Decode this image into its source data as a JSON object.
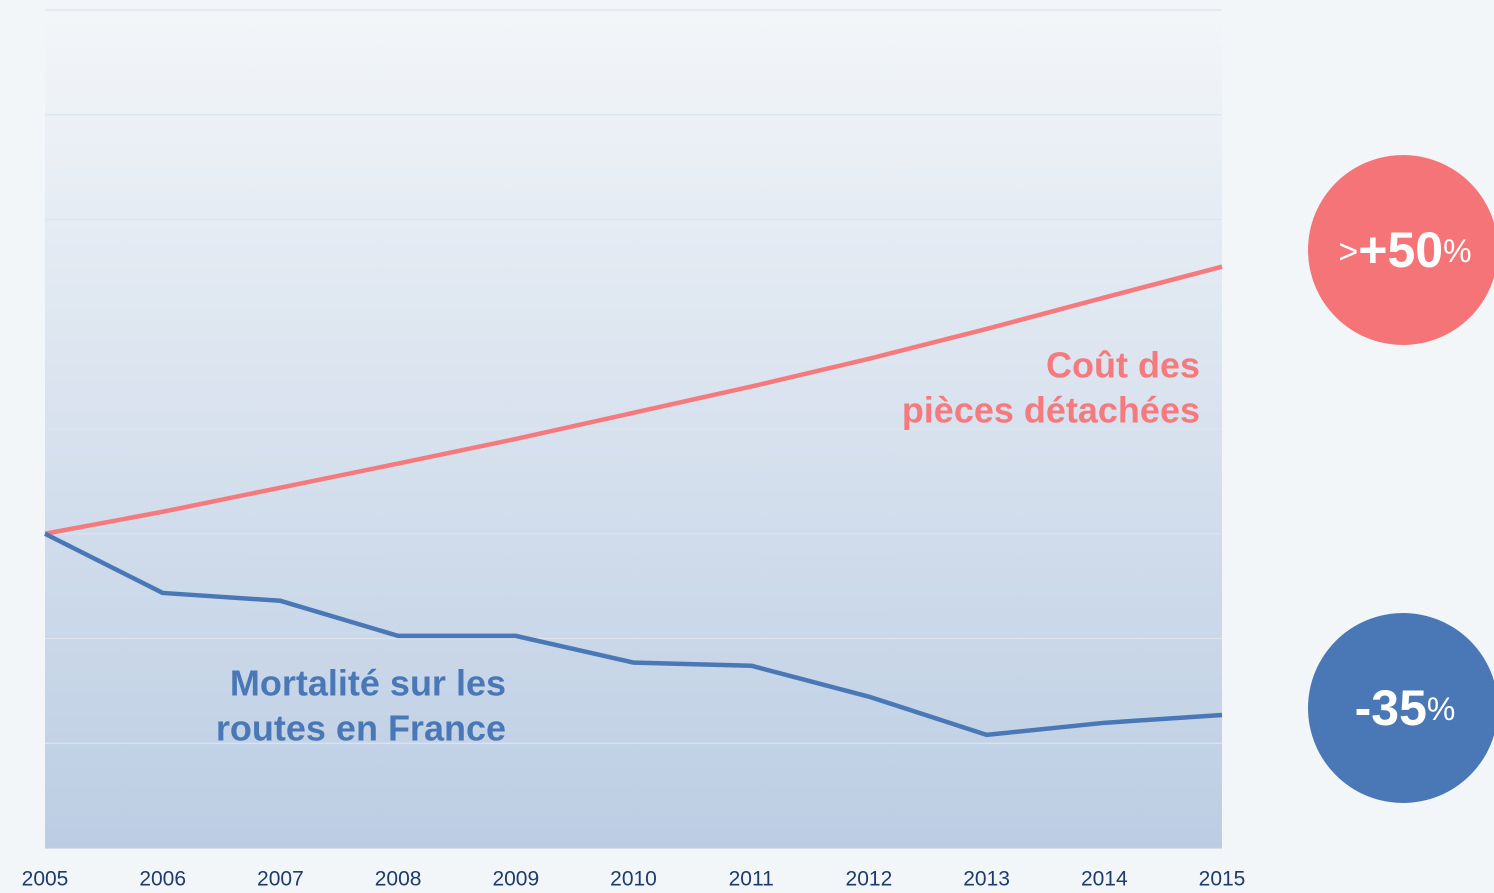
{
  "chart_data": {
    "type": "line",
    "categories": [
      "2005",
      "2006",
      "2007",
      "2008",
      "2009",
      "2010",
      "2011",
      "2012",
      "2013",
      "2014",
      "2015"
    ],
    "series": [
      {
        "label": [
          "Coût des",
          "pièces détachées"
        ],
        "color": "#f57a7e",
        "values": [
          100,
          104.2,
          108.8,
          113.4,
          118.1,
          123.1,
          128.1,
          133.4,
          139.1,
          145.1,
          151
        ]
      },
      {
        "label": [
          "Mortalité sur les",
          "routes en France"
        ],
        "color": "#4a78b6",
        "values": [
          100,
          88.7,
          87.2,
          80.5,
          80.5,
          75.4,
          74.8,
          68.9,
          61.6,
          63.9,
          65.4
        ]
      }
    ],
    "ylim": [
      40,
      200
    ],
    "yticks": [
      40,
      60,
      80,
      100,
      120,
      140,
      160,
      180,
      200
    ],
    "grid": true,
    "annotations": [
      {
        "prefix": ">",
        "value": "+50",
        "suffix": "%",
        "color": "#f57478"
      },
      {
        "value": "-35",
        "suffix": "%",
        "color": "#4a78b6"
      }
    ]
  }
}
